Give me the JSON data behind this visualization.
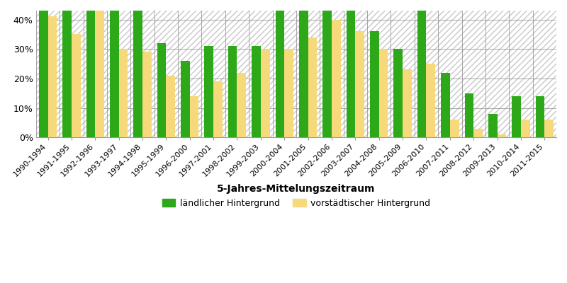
{
  "categories": [
    "1990-1994",
    "1991-1995",
    "1992-1996",
    "1993-1997",
    "1994-1998",
    "1995-1999",
    "1996-2000",
    "1997-2001",
    "1998-2002",
    "1999-2003",
    "2000-2004",
    "2001-2005",
    "2002-2006",
    "2003-2007",
    "2004-2008",
    "2005-2009",
    "2006-2010",
    "2007-2011",
    "2008-2012",
    "2009-2013",
    "2010-2014",
    "2011-2015"
  ],
  "rural": [
    44,
    44,
    44,
    44,
    43,
    32,
    26,
    31,
    31,
    31,
    44,
    44,
    44,
    44,
    36,
    30,
    44,
    22,
    15,
    8,
    14,
    14
  ],
  "suburban": [
    41,
    35,
    44,
    30,
    29,
    21,
    14,
    19,
    22,
    30,
    30,
    34,
    40,
    36,
    30,
    23,
    25,
    6,
    3,
    1,
    6,
    6
  ],
  "rural_color": "#2ca818",
  "suburban_color": "#f5d97a",
  "xlabel": "5-Jahres-Mittelungszeitraum",
  "ylim_max": 43,
  "yticks": [
    0,
    10,
    20,
    30,
    40
  ],
  "ytick_labels": [
    "0%",
    "10%",
    "20%",
    "30%",
    "40%"
  ],
  "legend_rural": "ländlicher Hintergrund",
  "legend_suburban": "vorstädtischer Hintergrund",
  "bar_width": 0.38,
  "grid_color": "#999999",
  "hatch_color": "#c8c8c8",
  "axis_fontsize": 8,
  "xlabel_fontsize": 10,
  "legend_fontsize": 9
}
